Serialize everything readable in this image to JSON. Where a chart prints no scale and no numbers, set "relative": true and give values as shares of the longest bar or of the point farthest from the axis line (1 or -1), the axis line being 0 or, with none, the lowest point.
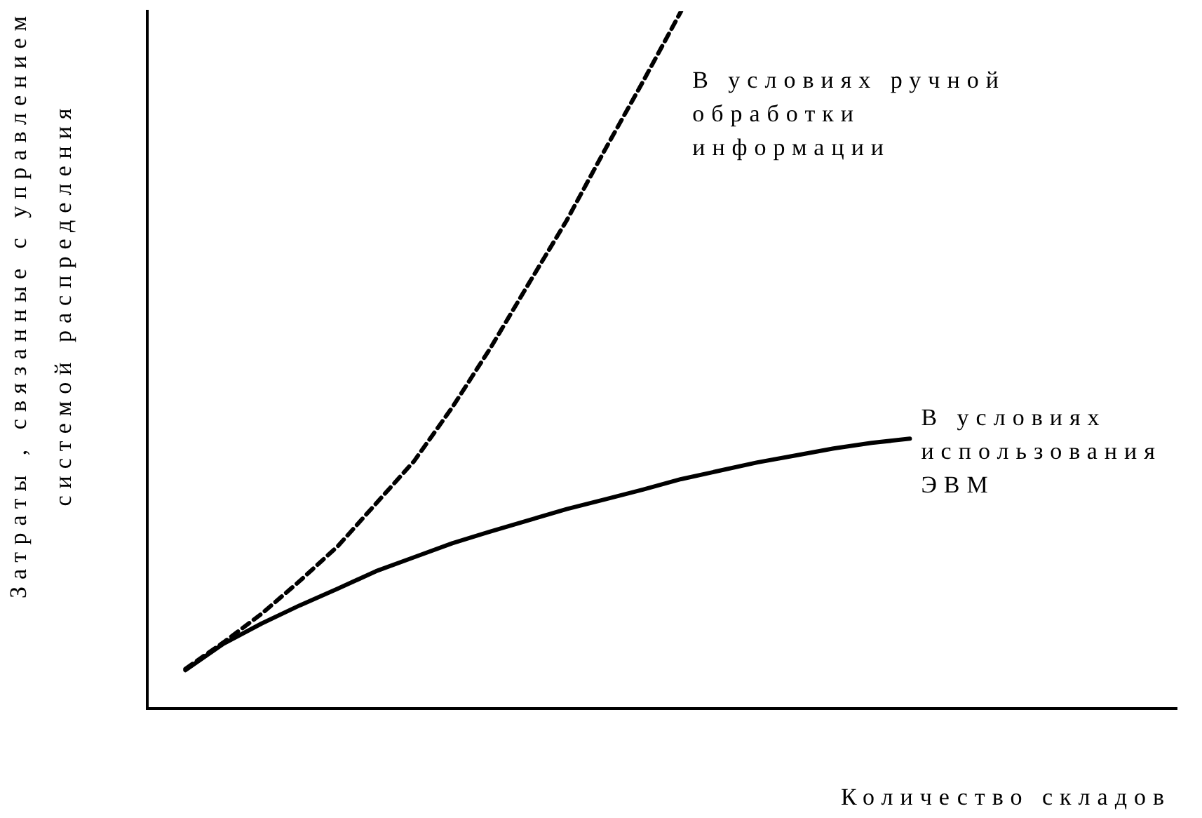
{
  "chart_data": {
    "type": "line",
    "relative": true,
    "xlabel": "Количество складов",
    "ylabel": "Затраты , связанные с управлением системой распределения",
    "categories": [
      null,
      null,
      null,
      null,
      null,
      null,
      null,
      null,
      null,
      null,
      null,
      null,
      null,
      null,
      null,
      null,
      null,
      null,
      null,
      null,
      null,
      null,
      null,
      null,
      null,
      null,
      null,
      null
    ],
    "grid": false,
    "legend": false,
    "marker": "none",
    "series": [
      {
        "name": "В условиях ручной обработки информации",
        "color": "#000000",
        "line_style": "dashed",
        "values": [
          null,
          0.057,
          0.095,
          0.136,
          0.183,
          0.233,
          0.294,
          0.355,
          0.432,
          0.517,
          0.609,
          0.7,
          0.801,
          0.899,
          1,
          null,
          null,
          null,
          null,
          null,
          null,
          null,
          null,
          null,
          null,
          null,
          null,
          null
        ]
      },
      {
        "name": "В условиях использования ЭВМ",
        "color": "#000000",
        "line_style": "solid",
        "values": [
          null,
          0.055,
          0.093,
          0.122,
          0.148,
          0.172,
          0.197,
          0.217,
          0.237,
          0.254,
          0.27,
          0.286,
          0.3,
          0.314,
          0.329,
          0.341,
          0.353,
          0.363,
          0.373,
          0.381,
          0.387,
          null,
          null,
          null,
          null,
          null,
          null,
          null
        ]
      }
    ]
  }
}
